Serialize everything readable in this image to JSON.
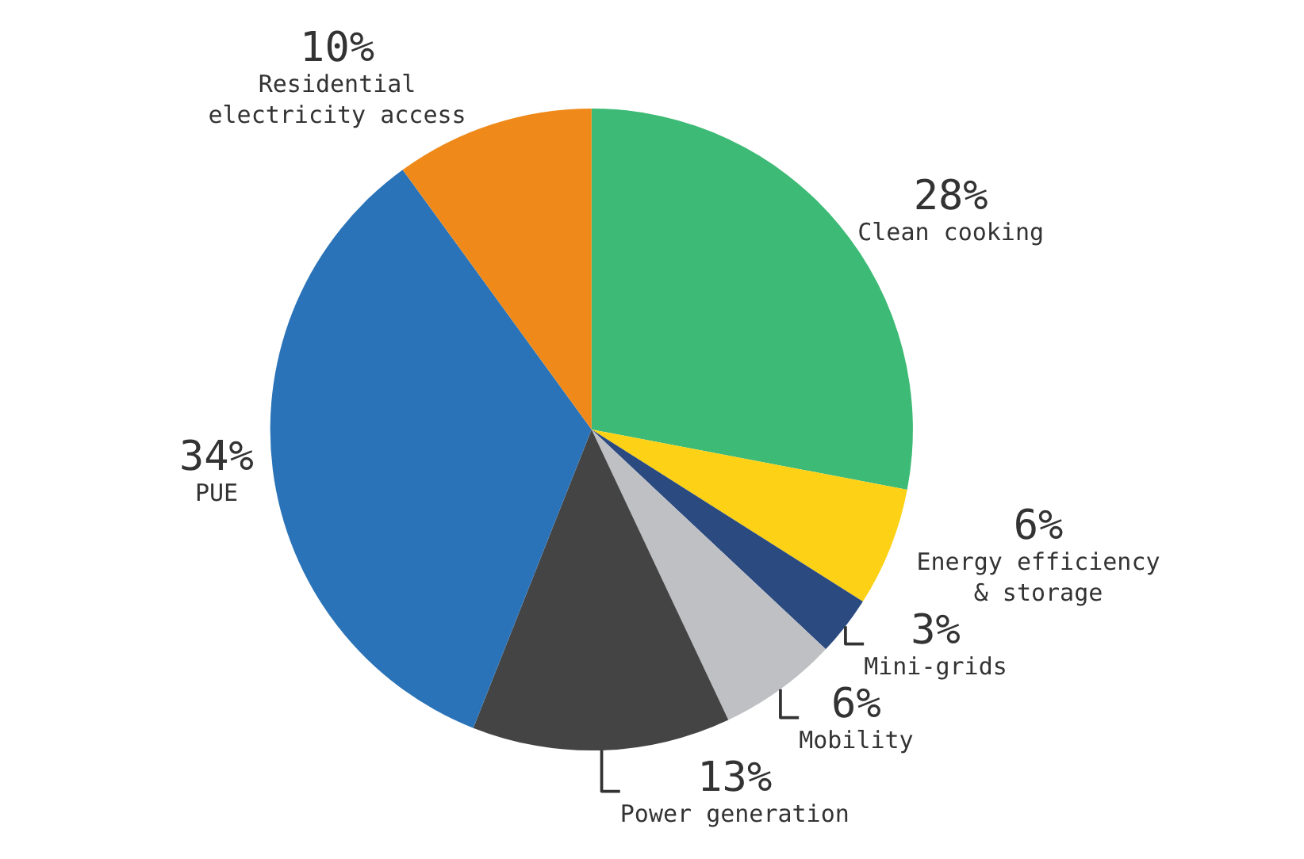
{
  "chart_data": {
    "type": "pie",
    "categories": [
      "Clean cooking",
      "Energy efficiency & storage",
      "Mini-grids",
      "Mobility",
      "Power generation",
      "PUE",
      "Residential electricity access"
    ],
    "values": [
      28,
      6,
      3,
      6,
      13,
      34,
      10
    ],
    "colors": [
      "#3dba75",
      "#fcd116",
      "#2a4a80",
      "#bfc0c4",
      "#444444",
      "#2a73b8",
      "#ef8a1a"
    ],
    "value_labels": [
      "28%",
      "6%",
      "3%",
      "6%",
      "13%",
      "34%",
      "10%"
    ],
    "legend": false
  }
}
